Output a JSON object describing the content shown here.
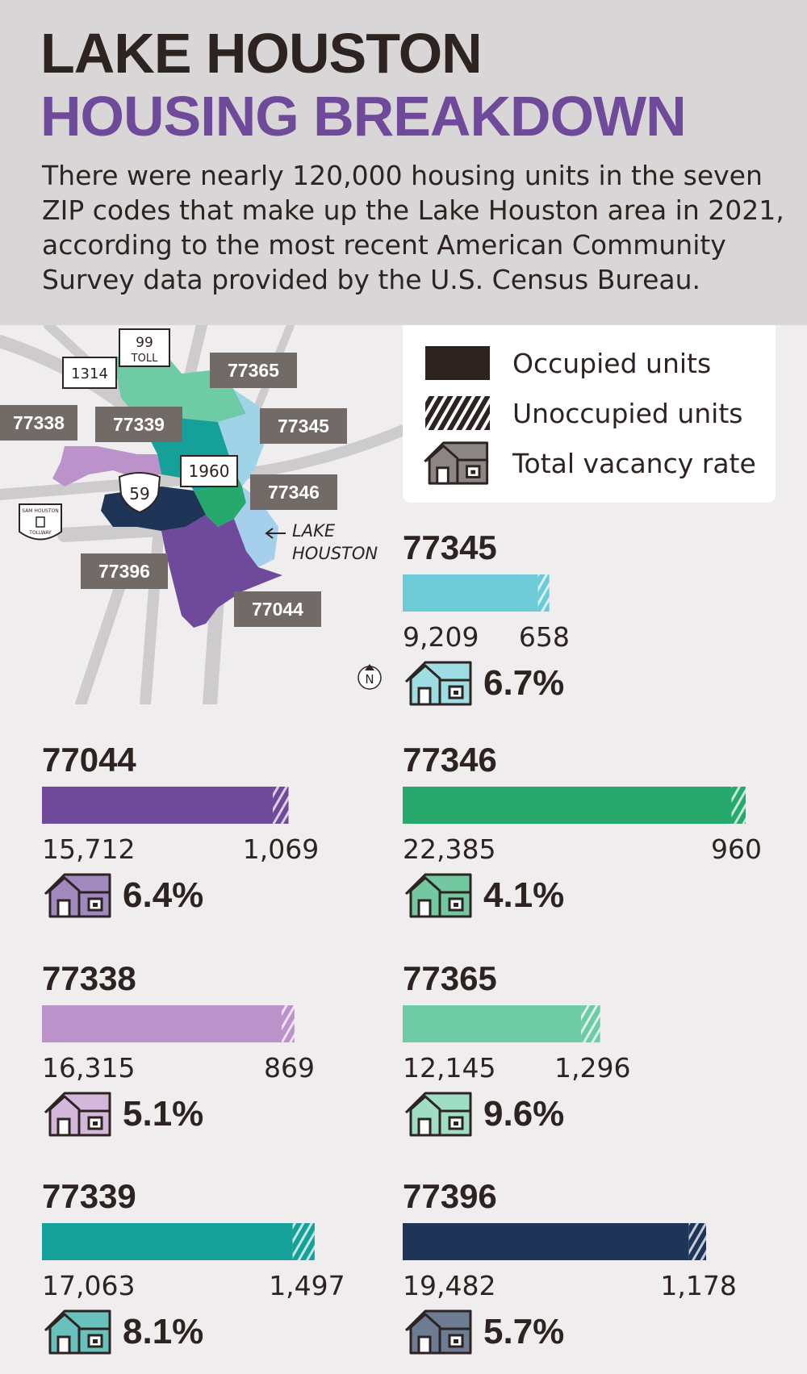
{
  "header": {
    "title_line1": "LAKE HOUSTON",
    "title_line2": "HOUSING BREAKDOWN",
    "intro": "There were nearly 120,000 housing units in the seven ZIP codes that make up the Lake Houston area in 2021, according to the most recent American Community Survey data provided by the U.S. Census Bureau."
  },
  "legend": {
    "occupied": "Occupied units",
    "unoccupied": "Unoccupied units",
    "vacancy": "Total vacancy rate"
  },
  "map": {
    "labels": {
      "z77365": "77365",
      "z77338": "77338",
      "z77339": "77339",
      "z77345": "77345",
      "z77346": "77346",
      "z77396": "77396",
      "z77044": "77044"
    },
    "roads": {
      "r99": "99",
      "toll": "TOLL",
      "r1314": "1314",
      "r1960": "1960",
      "r59": "59",
      "sam_top": "SAM HOUSTON",
      "sam_bottom": "TOLLWAY"
    },
    "lake_line1": "LAKE",
    "lake_line2": "HOUSTON",
    "north": "N"
  },
  "chart_data": {
    "type": "bar",
    "stacked": true,
    "series": [
      {
        "name": "Occupied units"
      },
      {
        "name": "Unoccupied units"
      }
    ],
    "zips": [
      {
        "code": "77345",
        "occupied": 9209,
        "unoccupied": 658,
        "occupied_label": "9,209",
        "unoccupied_label": "658",
        "vacancy": "6.7%",
        "color": "#6ccbd6"
      },
      {
        "code": "77044",
        "occupied": 15712,
        "unoccupied": 1069,
        "occupied_label": "15,712",
        "unoccupied_label": "1,069",
        "vacancy": "6.4%",
        "color": "#6f4a9a"
      },
      {
        "code": "77346",
        "occupied": 22385,
        "unoccupied": 960,
        "occupied_label": "22,385",
        "unoccupied_label": "960",
        "vacancy": "4.1%",
        "color": "#27a96e"
      },
      {
        "code": "77338",
        "occupied": 16315,
        "unoccupied": 869,
        "occupied_label": "16,315",
        "unoccupied_label": "869",
        "vacancy": "5.1%",
        "color": "#bb92c9"
      },
      {
        "code": "77365",
        "occupied": 12145,
        "unoccupied": 1296,
        "occupied_label": "12,145",
        "unoccupied_label": "1,296",
        "vacancy": "9.6%",
        "color": "#6dcba6"
      },
      {
        "code": "77339",
        "occupied": 17063,
        "unoccupied": 1497,
        "occupied_label": "17,063",
        "unoccupied_label": "1,497",
        "vacancy": "8.1%",
        "color": "#16a09a"
      },
      {
        "code": "77396",
        "occupied": 19482,
        "unoccupied": 1178,
        "occupied_label": "19,482",
        "unoccupied_label": "1,178",
        "vacancy": "5.7%",
        "color": "#1e3557"
      }
    ]
  }
}
